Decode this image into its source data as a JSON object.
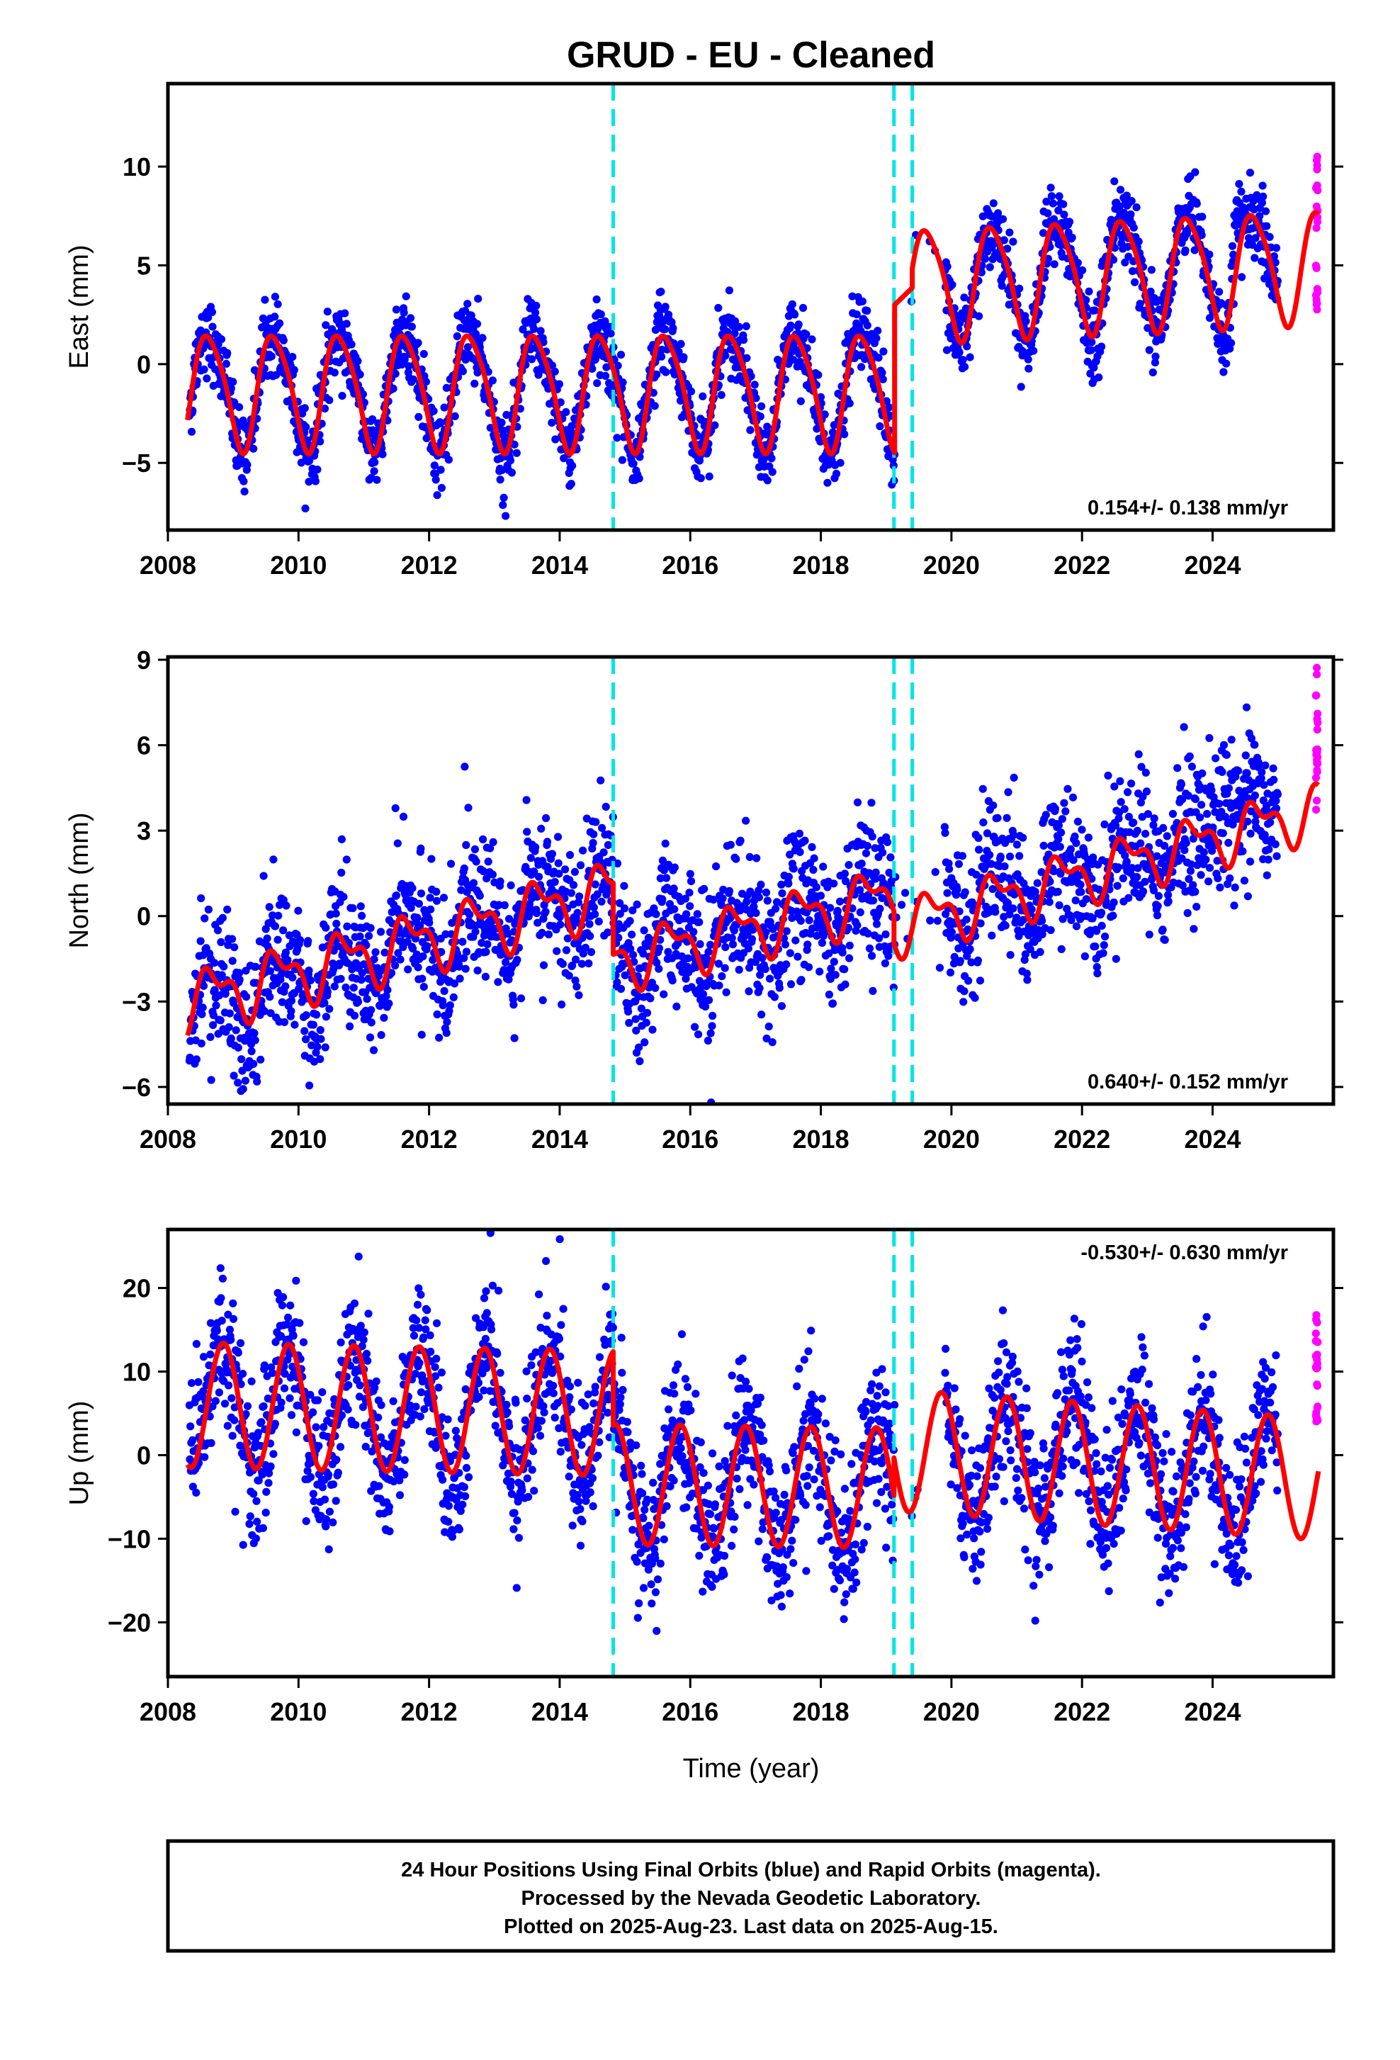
{
  "title": "GRUD  - EU - Cleaned",
  "x_axis_label": "Time (year)",
  "x_ticks": [
    "2008",
    "2010",
    "2012",
    "2014",
    "2016",
    "2018",
    "2020",
    "2022",
    "2024"
  ],
  "colors": {
    "final_orbits": "#0000ff",
    "rapid_orbits": "#ff00ff",
    "model_fit": "#ff0000",
    "breaks": "#00e5e5"
  },
  "footer": {
    "line1": "24 Hour Positions Using Final Orbits (blue) and Rapid Orbits (magenta).",
    "line2": "Processed by the Nevada Geodetic Laboratory.",
    "line3": "Plotted on 2025-Aug-23. Last data on 2025-Aug-15."
  },
  "chart_data": [
    {
      "type": "scatter",
      "name": "east",
      "ylabel": "East (mm)",
      "xlim": [
        2008,
        2025.85
      ],
      "ylim": [
        -8.4,
        14.2
      ],
      "yticks": [
        -5,
        0,
        5,
        10
      ],
      "ytick_labels": [
        "−5",
        "0",
        "5",
        "10"
      ],
      "rate_text": "0.154+/- 0.138 mm/yr",
      "rate_placement": "bottom-right",
      "break_years": [
        2014.82,
        2019.12,
        2019.4
      ],
      "data_span": [
        2008.33,
        2025.0
      ],
      "rapid_span": [
        2025.02,
        2025.62
      ],
      "model": {
        "segments": [
          {
            "start": 2008.3,
            "end": 2019.13,
            "offset": -1.3,
            "rate": 0.0,
            "annual_amp": 2.9,
            "semiannual_amp": 0.45,
            "phase_year": 2008.38
          },
          {
            "start": 2019.13,
            "end": 2019.4,
            "offset": 3.0,
            "rate": 3.2,
            "annual_amp": 0.0,
            "semiannual_amp": 0.0,
            "phase_year": 2008.38
          },
          {
            "start": 2019.4,
            "end": 2025.62,
            "offset": 4.1,
            "rate": 0.154,
            "annual_amp": 2.8,
            "semiannual_amp": 0.45,
            "phase_year": 2008.38
          }
        ]
      },
      "points_model": {
        "noise_sd": 0.9,
        "extra_seasonal_amp": 0.6,
        "late_bump": {
          "year": 2024.3,
          "amount": 3.0
        }
      },
      "rapid_range": [
        2.3,
        10.5
      ]
    },
    {
      "type": "scatter",
      "name": "north",
      "ylabel": "North (mm)",
      "xlim": [
        2008,
        2025.85
      ],
      "ylim": [
        -6.6,
        9.1
      ],
      "yticks": [
        -6,
        -3,
        0,
        3,
        6,
        9
      ],
      "ytick_labels": [
        "−6",
        "−3",
        "0",
        "3",
        "6",
        "9"
      ],
      "rate_text": "0.640+/- 0.152 mm/yr",
      "rate_placement": "bottom-right",
      "break_years": [
        2014.82,
        2019.12,
        2019.4
      ],
      "data_span": [
        2008.33,
        2025.0
      ],
      "rapid_span": [
        2025.02,
        2025.62
      ],
      "model": {
        "segments": [
          {
            "start": 2008.3,
            "end": 2014.82,
            "offset": -3.0,
            "rate": 0.6,
            "annual_amp": 0.9,
            "semiannual_amp": 0.5,
            "phase_year": 2008.45
          },
          {
            "start": 2014.82,
            "end": 2019.12,
            "offset": -1.6,
            "rate": 0.55,
            "annual_amp": 0.85,
            "semiannual_amp": 0.45,
            "phase_year": 2008.45
          },
          {
            "start": 2019.12,
            "end": 2025.62,
            "offset": -0.4,
            "rate": 0.64,
            "annual_amp": 0.8,
            "semiannual_amp": 0.45,
            "phase_year": 2008.45
          }
        ]
      },
      "points_model": {
        "noise_sd": 1.2,
        "extra_seasonal_amp": 0.5,
        "late_bump": {
          "year": 2023.9,
          "amount": 2.0
        }
      },
      "rapid_range": [
        3.0,
        8.9
      ]
    },
    {
      "type": "scatter",
      "name": "up",
      "ylabel": "Up (mm)",
      "xlim": [
        2008,
        2025.85
      ],
      "ylim": [
        -26.5,
        27.0
      ],
      "yticks": [
        -20,
        -10,
        0,
        10,
        20
      ],
      "ytick_labels": [
        "−20",
        "−10",
        "0",
        "10",
        "20"
      ],
      "rate_text": "-0.530+/- 0.630 mm/yr",
      "rate_placement": "top-right",
      "break_years": [
        2014.82,
        2019.12,
        2019.4
      ],
      "data_span": [
        2008.33,
        2025.0
      ],
      "rapid_span": [
        2025.02,
        2025.62
      ],
      "model": {
        "segments": [
          {
            "start": 2008.3,
            "end": 2014.82,
            "offset": 6.0,
            "rate": -0.15,
            "annual_amp": 7.5,
            "semiannual_amp": 0.0,
            "phase_year": 2008.6
          },
          {
            "start": 2014.82,
            "end": 2019.12,
            "offset": -3.5,
            "rate": -0.1,
            "annual_amp": 7.2,
            "semiannual_amp": 0.0,
            "phase_year": 2008.6
          },
          {
            "start": 2019.12,
            "end": 2025.62,
            "offset": 0.6,
            "rate": -0.53,
            "annual_amp": 7.3,
            "semiannual_amp": 0.0,
            "phase_year": 2008.6
          }
        ]
      },
      "points_model": {
        "noise_sd": 4.2,
        "extra_seasonal_amp": 2.0,
        "late_bump": {
          "year": 2030,
          "amount": 0
        }
      },
      "rapid_range": [
        4.0,
        17.5
      ]
    }
  ]
}
